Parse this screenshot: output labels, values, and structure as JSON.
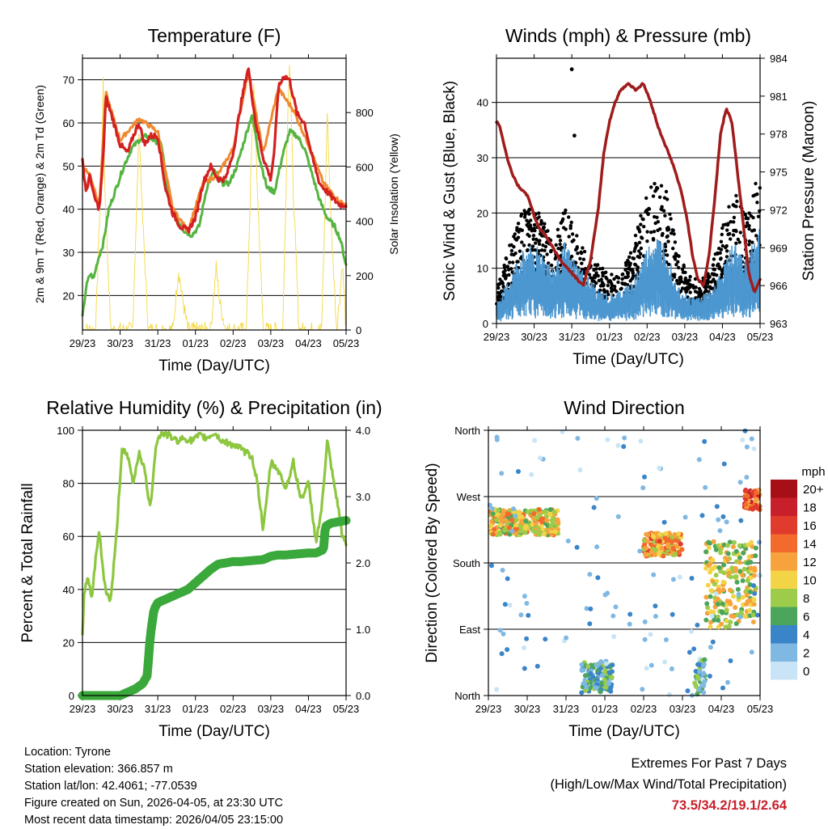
{
  "x_ticks": [
    "29/23",
    "30/23",
    "31/23",
    "01/23",
    "02/23",
    "03/23",
    "04/23",
    "05/23"
  ],
  "x_axis_label": "Time (Day/UTC)",
  "colors": {
    "temp_2m": "#d42020",
    "temp_9m": "#f08a30",
    "dewpoint": "#55b441",
    "solar": "#f4d945",
    "gust": "#000000",
    "wind": "#4d97d0",
    "pressure": "#a01c1c",
    "rh": "#8dc63f",
    "rain": "#3aa83a",
    "extremes": "#c8202a"
  },
  "chart_data": [
    {
      "type": "line",
      "title": "Temperature (F)",
      "xlabel": "Time (Day/UTC)",
      "ylabel": "2m & 9m T (Red, Orange) & 2m Td (Green)",
      "ylabel_right": "Solar Insolation (Yellow)",
      "ylim": [
        12,
        75
      ],
      "y_ticks": [
        20,
        30,
        40,
        50,
        60,
        70
      ],
      "y2lim": [
        0,
        1000
      ],
      "y2_ticks": [
        0,
        200,
        400,
        600,
        800
      ],
      "xlim": [
        0,
        7
      ],
      "series": [
        {
          "name": "2m T",
          "color": "#d42020",
          "x": [
            0,
            0.1,
            0.2,
            0.3,
            0.45,
            0.55,
            0.62,
            0.8,
            1.0,
            1.2,
            1.35,
            1.5,
            1.65,
            1.8,
            2.0,
            2.2,
            2.4,
            2.6,
            2.8,
            3.0,
            3.2,
            3.4,
            3.6,
            3.8,
            4.0,
            4.2,
            4.4,
            4.6,
            4.8,
            5.0,
            5.1,
            5.2,
            5.35,
            5.5,
            5.7,
            5.9,
            6.1,
            6.3,
            6.5,
            6.7,
            6.85,
            7.0
          ],
          "values": [
            51,
            44,
            48,
            43,
            40,
            52,
            66,
            61,
            55,
            53,
            57,
            60,
            55,
            57,
            57,
            45,
            39,
            36,
            35,
            38,
            46,
            50,
            47,
            47,
            53,
            64,
            73,
            60,
            52,
            47,
            54,
            68,
            71,
            70,
            62,
            60,
            52,
            46,
            44,
            42,
            41,
            41
          ]
        },
        {
          "name": "9m T",
          "color": "#f08a30",
          "x": [
            0,
            0.2,
            0.45,
            0.62,
            1.0,
            1.5,
            2.0,
            2.4,
            2.8,
            3.2,
            3.6,
            4.0,
            4.4,
            4.8,
            5.2,
            5.6,
            6.0,
            6.4,
            6.8,
            7.0
          ],
          "values": [
            50,
            48,
            41,
            67,
            56,
            61,
            58,
            40,
            35,
            46,
            48,
            54,
            72,
            53,
            68,
            63,
            55,
            46,
            42,
            41
          ]
        },
        {
          "name": "2m Td",
          "color": "#55b441",
          "x": [
            0,
            0.1,
            0.2,
            0.3,
            0.4,
            0.55,
            0.7,
            0.9,
            1.1,
            1.3,
            1.5,
            1.7,
            1.9,
            2.1,
            2.3,
            2.5,
            2.7,
            2.9,
            3.1,
            3.3,
            3.5,
            3.7,
            3.9,
            4.1,
            4.3,
            4.5,
            4.7,
            4.9,
            5.1,
            5.3,
            5.5,
            5.7,
            5.9,
            6.1,
            6.3,
            6.5,
            6.7,
            6.85,
            7.0
          ],
          "values": [
            15,
            22,
            25,
            24,
            28,
            32,
            40,
            45,
            50,
            54,
            56,
            57,
            56,
            55,
            42,
            38,
            35,
            34,
            36,
            45,
            49,
            46,
            46,
            50,
            56,
            62,
            52,
            45,
            44,
            52,
            58,
            57,
            54,
            48,
            42,
            38,
            36,
            33,
            27
          ]
        },
        {
          "name": "Solar",
          "color": "#f4d945",
          "axis": "right",
          "x": [
            0,
            0.35,
            0.5,
            0.55,
            0.6,
            0.75,
            1.33,
            1.45,
            1.5,
            1.6,
            1.75,
            2.4,
            2.5,
            2.55,
            2.65,
            2.8,
            3.4,
            3.5,
            3.55,
            3.65,
            3.8,
            4.35,
            4.5,
            4.55,
            4.65,
            4.8,
            5.32,
            5.45,
            5.5,
            5.6,
            5.75,
            6.35,
            6.45,
            6.5,
            6.6,
            6.75,
            6.85,
            6.9,
            7.0
          ],
          "values": [
            0,
            0,
            600,
            900,
            500,
            0,
            0,
            500,
            750,
            400,
            0,
            0,
            150,
            220,
            120,
            0,
            0,
            150,
            230,
            100,
            0,
            0,
            700,
            900,
            500,
            0,
            0,
            800,
            1000,
            500,
            0,
            0,
            500,
            800,
            400,
            0,
            150,
            250,
            0
          ]
        }
      ]
    },
    {
      "type": "scatter",
      "title": "Winds (mph) & Pressure (mb)",
      "xlabel": "Time (Day/UTC)",
      "ylabel": "Sonic Wind & Gust (Blue, Black)",
      "ylabel_right": "Station Pressure (Maroon)",
      "ylim": [
        0,
        48
      ],
      "y_ticks": [
        0,
        10,
        20,
        30,
        40
      ],
      "y2lim": [
        963,
        984
      ],
      "y2_ticks": [
        963,
        966,
        969,
        972,
        975,
        978,
        981,
        984
      ],
      "xlim": [
        0,
        7
      ],
      "series": [
        {
          "name": "Gust",
          "color": "#000000",
          "style": "band",
          "x": [
            0,
            0.3,
            0.6,
            0.9,
            1.2,
            1.5,
            1.8,
            2.1,
            2.4,
            2.7,
            3.0,
            3.3,
            3.6,
            3.9,
            4.2,
            4.5,
            4.8,
            5.1,
            5.4,
            5.7,
            6.0,
            6.3,
            6.6,
            6.9,
            7.0
          ],
          "values": [
            6,
            12,
            18,
            20,
            18,
            14,
            20,
            15,
            12,
            10,
            8,
            9,
            12,
            20,
            24,
            22,
            12,
            8,
            7,
            9,
            16,
            22,
            18,
            24,
            28
          ]
        },
        {
          "name": "Wind",
          "color": "#4d97d0",
          "style": "band",
          "x": [
            0,
            0.3,
            0.6,
            0.9,
            1.2,
            1.5,
            1.8,
            2.1,
            2.4,
            2.7,
            3.0,
            3.3,
            3.6,
            3.9,
            4.2,
            4.5,
            4.8,
            5.1,
            5.4,
            5.7,
            6.0,
            6.3,
            6.6,
            6.9,
            7.0
          ],
          "values": [
            3,
            6,
            10,
            12,
            11,
            8,
            12,
            9,
            7,
            5,
            4,
            5,
            6,
            10,
            13,
            12,
            6,
            4,
            4,
            5,
            8,
            12,
            10,
            13,
            14
          ]
        },
        {
          "name": "Station Pressure",
          "color": "#a01c1c",
          "style": "line",
          "axis": "right",
          "x": [
            0,
            0.1,
            0.25,
            0.4,
            0.55,
            0.7,
            0.85,
            1.0,
            1.15,
            1.3,
            1.5,
            1.7,
            1.85,
            2.0,
            2.15,
            2.3,
            2.5,
            2.7,
            2.85,
            3.0,
            3.15,
            3.3,
            3.5,
            3.7,
            3.9,
            4.1,
            4.3,
            4.5,
            4.7,
            4.9,
            5.05,
            5.2,
            5.35,
            5.5,
            5.65,
            5.8,
            5.95,
            6.1,
            6.25,
            6.4,
            6.55,
            6.7,
            6.85,
            7.0
          ],
          "values": [
            979,
            978.5,
            976.5,
            975,
            974,
            973.5,
            973,
            971.5,
            970.5,
            970,
            969,
            968,
            967.5,
            967,
            966.5,
            966,
            968,
            972,
            976.5,
            979,
            980.5,
            981.5,
            982,
            981.5,
            982,
            980.5,
            978.5,
            977,
            975.5,
            973.5,
            971.5,
            968.5,
            966.5,
            966,
            968.5,
            973,
            978,
            980,
            979,
            975,
            971,
            967,
            965.5,
            966.5
          ]
        }
      ],
      "outliers": [
        {
          "x": 2.0,
          "y": 46
        },
        {
          "x": 2.07,
          "y": 34
        }
      ]
    },
    {
      "type": "line",
      "title": "Relative Humidity (%) & Precipitation (in)",
      "xlabel": "Time (Day/UTC)",
      "ylabel": "Percent & Total Rainfall",
      "ylim": [
        0,
        100
      ],
      "y_ticks": [
        0,
        20,
        40,
        60,
        80,
        100
      ],
      "y2lim": [
        0.0,
        4.0
      ],
      "y2_ticks": [
        "0.0",
        "1.0",
        "2.0",
        "3.0",
        "4.0"
      ],
      "xlim": [
        0,
        7
      ],
      "series": [
        {
          "name": "Relative Humidity",
          "color": "#8dc63f",
          "x": [
            0,
            0.05,
            0.15,
            0.25,
            0.35,
            0.45,
            0.55,
            0.65,
            0.75,
            0.9,
            1.05,
            1.2,
            1.35,
            1.5,
            1.65,
            1.8,
            1.95,
            2.1,
            2.3,
            2.5,
            2.7,
            2.9,
            3.1,
            3.3,
            3.5,
            3.7,
            3.9,
            4.1,
            4.3,
            4.5,
            4.65,
            4.8,
            5.0,
            5.2,
            5.4,
            5.6,
            5.8,
            6.0,
            6.2,
            6.35,
            6.5,
            6.65,
            6.8,
            6.9,
            7.0
          ],
          "values": [
            22,
            40,
            44,
            36,
            52,
            62,
            46,
            38,
            36,
            60,
            93,
            90,
            80,
            92,
            85,
            70,
            95,
            99,
            98,
            96,
            97,
            96,
            98,
            97,
            99,
            96,
            95,
            94,
            92,
            90,
            80,
            62,
            88,
            85,
            78,
            88,
            74,
            80,
            58,
            70,
            96,
            82,
            70,
            60,
            57
          ]
        },
        {
          "name": "Total Precipitation",
          "color": "#3aa83a",
          "axis": "right",
          "x": [
            0,
            1.0,
            1.2,
            1.4,
            1.6,
            1.72,
            1.8,
            1.9,
            2.0,
            2.2,
            2.4,
            2.6,
            2.8,
            3.0,
            3.2,
            3.4,
            3.6,
            3.8,
            4.0,
            4.2,
            4.4,
            4.6,
            4.8,
            5.0,
            5.2,
            5.4,
            5.6,
            5.8,
            6.0,
            6.2,
            6.4,
            6.45,
            6.6,
            6.8,
            7.0
          ],
          "values": [
            0,
            0,
            0.05,
            0.1,
            0.18,
            0.3,
            0.9,
            1.3,
            1.4,
            1.45,
            1.5,
            1.55,
            1.6,
            1.7,
            1.8,
            1.9,
            1.98,
            2.0,
            2.02,
            2.02,
            2.03,
            2.04,
            2.05,
            2.1,
            2.12,
            2.12,
            2.13,
            2.14,
            2.15,
            2.15,
            2.2,
            2.55,
            2.6,
            2.62,
            2.64
          ]
        }
      ]
    },
    {
      "type": "scatter",
      "title": "Wind Direction",
      "xlabel": "Time (Day/UTC)",
      "ylabel": "Direction (Colored By Speed)",
      "ylim": [
        0,
        360
      ],
      "y_ticks": [
        "North",
        "East",
        "South",
        "West",
        "North"
      ],
      "xlim": [
        0,
        7
      ],
      "color_by": "speed",
      "clusters": [
        {
          "x0": 0.05,
          "x1": 1.8,
          "dir": 235,
          "spread": 18,
          "speed": 10
        },
        {
          "x0": 2.4,
          "x1": 3.2,
          "dir": 25,
          "spread": 20,
          "speed": 5
        },
        {
          "x0": 4.0,
          "x1": 5.0,
          "dir": 205,
          "spread": 16,
          "speed": 12
        },
        {
          "x0": 5.3,
          "x1": 5.6,
          "dir": 25,
          "spread": 25,
          "speed": 4
        },
        {
          "x0": 5.6,
          "x1": 6.9,
          "dir": 150,
          "spread": 60,
          "speed": 9
        },
        {
          "x0": 6.6,
          "x1": 7.0,
          "dir": 265,
          "spread": 14,
          "speed": 15
        }
      ]
    }
  ],
  "colorbar": {
    "unit": "mph",
    "labels": [
      "20+",
      "18",
      "16",
      "14",
      "12",
      "10",
      "8",
      "6",
      "4",
      "2",
      "0"
    ],
    "colors": [
      "#a50f15",
      "#c8202a",
      "#e03b2c",
      "#f26a2c",
      "#f7a33d",
      "#f3d447",
      "#9ccc4a",
      "#4ba65c",
      "#3a85c7",
      "#7fb8e3",
      "#c8e4f6"
    ]
  },
  "station": {
    "location": "Location: Tyrone",
    "elevation": "Station elevation: 366.857 m",
    "latlon": "Station lat/lon: 42.4061; -77.0539",
    "created": "Figure created on Sun, 2026-04-05, at 23:30 UTC",
    "recent": "Most recent data timestamp: 2026/04/05 23:15:00"
  },
  "extremes": {
    "title": "Extremes For Past 7 Days",
    "subtitle": "(High/Low/Max Wind/Total Precipitation)",
    "values": "73.5/34.2/19.1/2.64"
  }
}
